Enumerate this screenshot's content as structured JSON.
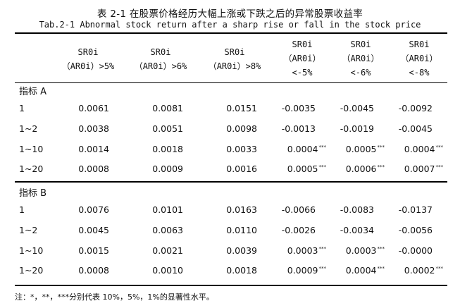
{
  "title_cn": "表 2-1   在股票价格经历大幅上涨或下跌之后的异常股票收益率",
  "title_en": "Tab.2-1 Abnormal stock return after a sharp rise or fall in the stock price",
  "headers": [
    [
      "SR0i",
      "（AR0i）>5%"
    ],
    [
      "SR0i",
      "（AR0i）>6%"
    ],
    [
      "SR0i",
      "（AR0i）>8%"
    ],
    [
      "SR0i",
      "（AR0i）",
      "<-5%"
    ],
    [
      "SR0i",
      "（AR0i）",
      "<-6%"
    ],
    [
      "SR0i",
      "（AR0i）",
      "<-8%"
    ]
  ],
  "sections": [
    {
      "label": "指标 A",
      "rows": [
        {
          "label": "1",
          "cells": [
            {
              "v": "0.0061",
              "s": ""
            },
            {
              "v": "0.0081",
              "s": ""
            },
            {
              "v": "0.0151",
              "s": ""
            },
            {
              "v": "-0.0035",
              "s": ""
            },
            {
              "v": "-0.0045",
              "s": ""
            },
            {
              "v": "-0.0092",
              "s": ""
            }
          ]
        },
        {
          "label": "1~2",
          "cells": [
            {
              "v": "0.0038",
              "s": ""
            },
            {
              "v": "0.0051",
              "s": ""
            },
            {
              "v": "0.0098",
              "s": ""
            },
            {
              "v": "-0.0013",
              "s": ""
            },
            {
              "v": "-0.0019",
              "s": ""
            },
            {
              "v": "-0.0045",
              "s": ""
            }
          ]
        },
        {
          "label": "1~10",
          "cells": [
            {
              "v": "0.0014",
              "s": ""
            },
            {
              "v": "0.0018",
              "s": ""
            },
            {
              "v": "0.0033",
              "s": ""
            },
            {
              "v": "0.0004",
              "s": "***"
            },
            {
              "v": "0.0005",
              "s": "***"
            },
            {
              "v": "0.0004",
              "s": "***"
            }
          ]
        },
        {
          "label": "1~20",
          "cells": [
            {
              "v": "0.0008",
              "s": ""
            },
            {
              "v": "0.0009",
              "s": ""
            },
            {
              "v": "0.0016",
              "s": ""
            },
            {
              "v": "0.0005",
              "s": "***"
            },
            {
              "v": "0.0006",
              "s": "***"
            },
            {
              "v": "0.0007",
              "s": "***"
            }
          ]
        }
      ]
    },
    {
      "label": "指标 B",
      "rows": [
        {
          "label": "1",
          "cells": [
            {
              "v": "0.0076",
              "s": ""
            },
            {
              "v": "0.0101",
              "s": ""
            },
            {
              "v": "0.0163",
              "s": ""
            },
            {
              "v": "-0.0066",
              "s": ""
            },
            {
              "v": "-0.0083",
              "s": ""
            },
            {
              "v": "-0.0137",
              "s": ""
            }
          ]
        },
        {
          "label": "1~2",
          "cells": [
            {
              "v": "0.0045",
              "s": ""
            },
            {
              "v": "0.0063",
              "s": ""
            },
            {
              "v": "0.0110",
              "s": ""
            },
            {
              "v": "-0.0026",
              "s": ""
            },
            {
              "v": "-0.0034",
              "s": ""
            },
            {
              "v": "-0.0056",
              "s": ""
            }
          ]
        },
        {
          "label": "1~10",
          "cells": [
            {
              "v": "0.0015",
              "s": ""
            },
            {
              "v": "0.0021",
              "s": ""
            },
            {
              "v": "0.0039",
              "s": ""
            },
            {
              "v": "0.0003",
              "s": "***"
            },
            {
              "v": "0.0003",
              "s": "***"
            },
            {
              "v": "-0.0000",
              "s": ""
            }
          ]
        },
        {
          "label": "1~20",
          "cells": [
            {
              "v": "0.0008",
              "s": ""
            },
            {
              "v": "0.0010",
              "s": ""
            },
            {
              "v": "0.0018",
              "s": ""
            },
            {
              "v": "0.0009",
              "s": "***"
            },
            {
              "v": "0.0004",
              "s": "***"
            },
            {
              "v": "0.0002",
              "s": "***"
            }
          ]
        }
      ]
    }
  ],
  "note": "注：*，**，***分别代表 10%，5%，1%的显著性水平。"
}
